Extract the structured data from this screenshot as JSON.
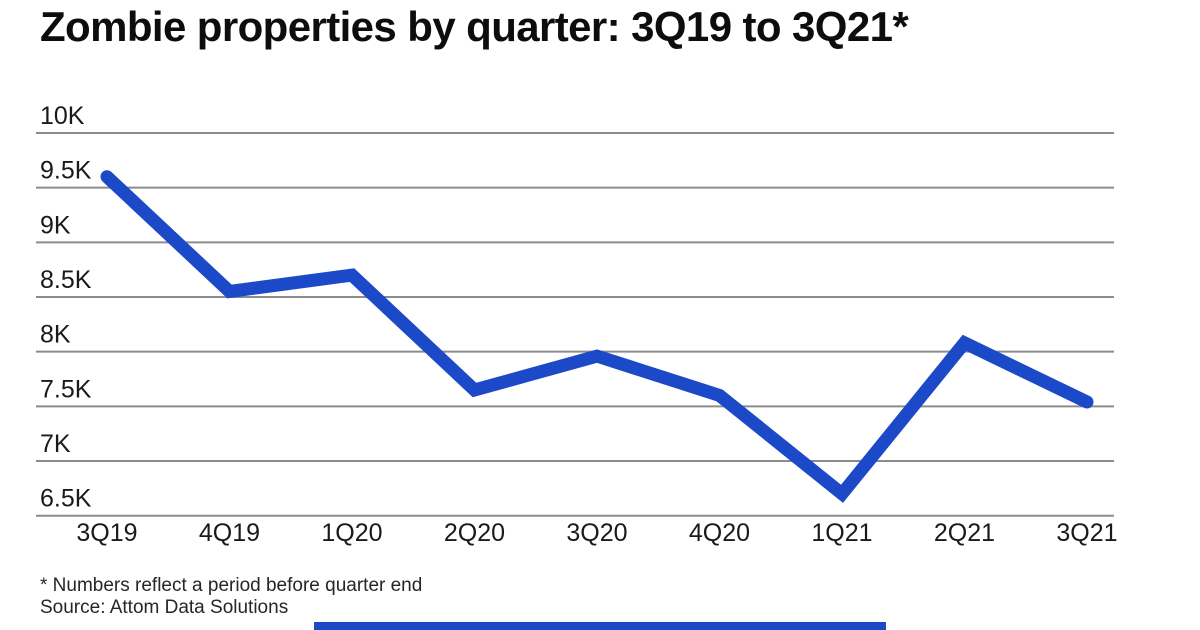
{
  "page": {
    "background": "#ffffff"
  },
  "header": {
    "title": "Zombie properties by quarter: 3Q19 to 3Q21*"
  },
  "footer": {
    "note": "* Numbers reflect a period before quarter end",
    "source": "Source: Attom Data Solutions"
  },
  "brand": {
    "accent_color": "#1b49c8"
  },
  "chart_data": {
    "type": "line",
    "title": "Zombie properties by quarter: 3Q19 to 3Q21*",
    "series_name": "Zombie properties",
    "categories": [
      "3Q19",
      "4Q19",
      "1Q20",
      "2Q20",
      "3Q20",
      "4Q20",
      "1Q21",
      "2Q21",
      "3Q21"
    ],
    "values": [
      9600,
      8550,
      8700,
      7650,
      7960,
      7600,
      6700,
      8080,
      7540
    ],
    "y_ticks": [
      "10K",
      "9.5K",
      "9K",
      "8.5K",
      "8K",
      "7.5K",
      "7K",
      "6.5K"
    ],
    "y_tick_values": [
      10000,
      9500,
      9000,
      8500,
      8000,
      7500,
      7000,
      6500
    ],
    "ylim": [
      6250,
      10000
    ],
    "xlabel": "",
    "ylabel": "",
    "grid": "horizontal",
    "legend": "none",
    "line_color": "#1b49c8",
    "line_width": 13,
    "grid_color": "#8c8c8c",
    "text_color": "#1a1a1a"
  }
}
